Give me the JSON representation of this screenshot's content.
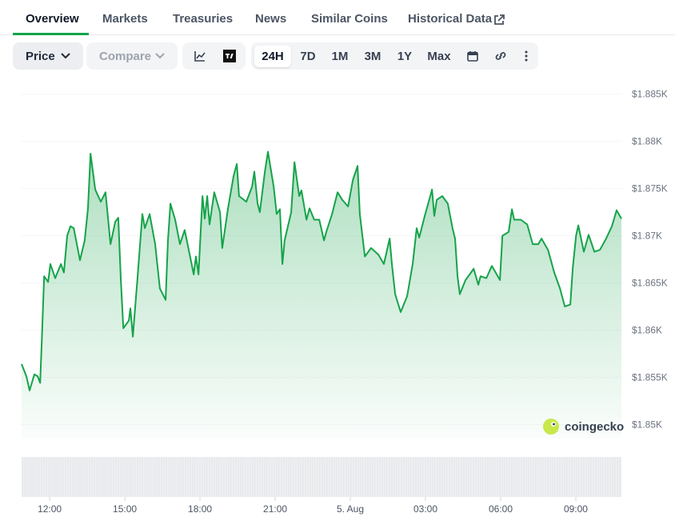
{
  "tabs": [
    "Overview",
    "Markets",
    "Treasuries",
    "News",
    "Similar Coins",
    "Historical Data"
  ],
  "toolbar": {
    "price": "Price",
    "compare": "Compare",
    "ranges": [
      "24H",
      "7D",
      "1M",
      "3M",
      "1Y",
      "Max"
    ]
  },
  "watermark": "coingecko",
  "chart_data": {
    "type": "line",
    "color": "#16a34a",
    "grid": true,
    "xlim": [
      -1.12,
      22.82
    ],
    "xticks": [
      {
        "value": 0,
        "label": "12:00"
      },
      {
        "value": 3,
        "label": "15:00"
      },
      {
        "value": 6,
        "label": "18:00"
      },
      {
        "value": 9,
        "label": "21:00"
      },
      {
        "value": 12,
        "label": "5. Aug"
      },
      {
        "value": 15,
        "label": "03:00"
      },
      {
        "value": 18,
        "label": "06:00"
      },
      {
        "value": 21,
        "label": "09:00"
      }
    ],
    "ylim": [
      1848.5,
      1886.5
    ],
    "yticks": [
      {
        "value": 1850,
        "label": "$1.85K"
      },
      {
        "value": 1855,
        "label": "$1.855K"
      },
      {
        "value": 1860,
        "label": "$1.86K"
      },
      {
        "value": 1865,
        "label": "$1.865K"
      },
      {
        "value": 1870,
        "label": "$1.87K"
      },
      {
        "value": 1875,
        "label": "$1.875K"
      },
      {
        "value": 1880,
        "label": "$1.88K"
      },
      {
        "value": 1885,
        "label": "$1.885K"
      }
    ],
    "x": [
      -1.12,
      -0.93,
      -0.8,
      -0.61,
      -0.48,
      -0.38,
      -0.32,
      -0.22,
      -0.06,
      0.03,
      0.22,
      0.45,
      0.57,
      0.7,
      0.83,
      0.96,
      1.21,
      1.4,
      1.53,
      1.63,
      1.82,
      2.04,
      2.23,
      2.43,
      2.62,
      2.74,
      2.84,
      2.94,
      3.16,
      3.22,
      3.32,
      3.51,
      3.7,
      3.8,
      3.99,
      4.21,
      4.4,
      4.63,
      4.72,
      4.82,
      5.01,
      5.2,
      5.39,
      5.59,
      5.75,
      5.84,
      5.94,
      6.1,
      6.19,
      6.29,
      6.38,
      6.57,
      6.8,
      6.89,
      7.12,
      7.34,
      7.47,
      7.56,
      7.85,
      8.08,
      8.17,
      8.3,
      8.39,
      8.59,
      8.71,
      8.94,
      9.06,
      9.19,
      9.29,
      9.38,
      9.64,
      9.77,
      9.96,
      10.05,
      10.25,
      10.37,
      10.56,
      10.76,
      10.95,
      11.04,
      11.27,
      11.49,
      11.68,
      11.91,
      12.1,
      12.29,
      12.38,
      12.58,
      12.83,
      13.12,
      13.34,
      13.57,
      13.66,
      13.79,
      14.01,
      14.27,
      14.49,
      14.65,
      14.75,
      14.97,
      15.19,
      15.26,
      15.35,
      15.45,
      15.67,
      15.89,
      16.08,
      16.18,
      16.28,
      16.37,
      16.6,
      16.82,
      16.92,
      17.11,
      17.2,
      17.43,
      17.65,
      17.97,
      18.07,
      18.32,
      18.45,
      18.54,
      18.8,
      19.06,
      19.28,
      19.5,
      19.63,
      19.89,
      20.14,
      20.37,
      20.56,
      20.78,
      20.88,
      21.01,
      21.1,
      21.32,
      21.51,
      21.74,
      21.96,
      22.21,
      22.44,
      22.63,
      22.82
    ],
    "values": [
      1856.4,
      1855.1,
      1853.6,
      1855.3,
      1855.1,
      1854.4,
      1858.5,
      1865.7,
      1865.1,
      1867.0,
      1865.5,
      1867.0,
      1866.1,
      1870.0,
      1871.0,
      1870.8,
      1867.4,
      1869.5,
      1872.9,
      1878.7,
      1874.9,
      1873.6,
      1874.6,
      1869.1,
      1871.5,
      1871.9,
      1865.3,
      1860.2,
      1861.0,
      1862.3,
      1859.3,
      1865.7,
      1872.3,
      1870.8,
      1872.3,
      1869.1,
      1864.4,
      1863.2,
      1869.5,
      1873.4,
      1871.7,
      1869.1,
      1870.6,
      1868.0,
      1865.9,
      1867.8,
      1865.9,
      1874.2,
      1871.8,
      1874.2,
      1871.2,
      1874.6,
      1872.5,
      1868.7,
      1872.9,
      1876.3,
      1877.6,
      1874.2,
      1873.6,
      1875.2,
      1876.8,
      1873.4,
      1872.5,
      1876.8,
      1878.9,
      1875.2,
      1872.3,
      1872.8,
      1867.0,
      1869.5,
      1872.5,
      1877.8,
      1874.2,
      1874.8,
      1871.7,
      1872.9,
      1871.7,
      1871.7,
      1869.5,
      1870.4,
      1872.3,
      1874.6,
      1873.8,
      1873.1,
      1875.9,
      1877.4,
      1872.3,
      1867.8,
      1868.7,
      1868.0,
      1867.0,
      1869.7,
      1867.0,
      1863.8,
      1861.9,
      1863.6,
      1867.0,
      1870.8,
      1869.8,
      1872.1,
      1874.2,
      1874.9,
      1872.1,
      1873.8,
      1874.2,
      1873.4,
      1870.8,
      1869.7,
      1865.7,
      1863.8,
      1865.3,
      1866.1,
      1866.5,
      1864.8,
      1865.7,
      1865.5,
      1866.8,
      1865.3,
      1870.0,
      1870.4,
      1872.8,
      1871.7,
      1871.7,
      1871.2,
      1869.1,
      1869.1,
      1869.7,
      1868.5,
      1866.1,
      1864.4,
      1862.5,
      1862.7,
      1866.6,
      1870.0,
      1871.1,
      1868.3,
      1870.1,
      1868.3,
      1868.5,
      1869.7,
      1871.0,
      1872.7,
      1871.8
    ]
  }
}
